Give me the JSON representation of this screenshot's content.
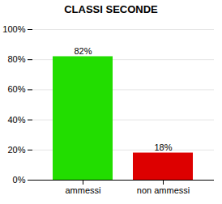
{
  "chart_data": {
    "type": "bar",
    "title": "CLASSI SECONDE",
    "categories": [
      "ammessi",
      "non ammessi"
    ],
    "values": [
      82,
      18
    ],
    "value_labels": [
      "82%",
      "18%"
    ],
    "data_labels": true,
    "colors": [
      "#22DD00",
      "#DD0000"
    ],
    "ylim": [
      0,
      100
    ],
    "yticks": [
      {
        "value": 0,
        "label": "0%"
      },
      {
        "value": 20,
        "label": "20%"
      },
      {
        "value": 40,
        "label": "40%"
      },
      {
        "value": 60,
        "label": "60%"
      },
      {
        "value": 80,
        "label": "80%"
      },
      {
        "value": 100,
        "label": "100%"
      }
    ],
    "grid": true
  }
}
